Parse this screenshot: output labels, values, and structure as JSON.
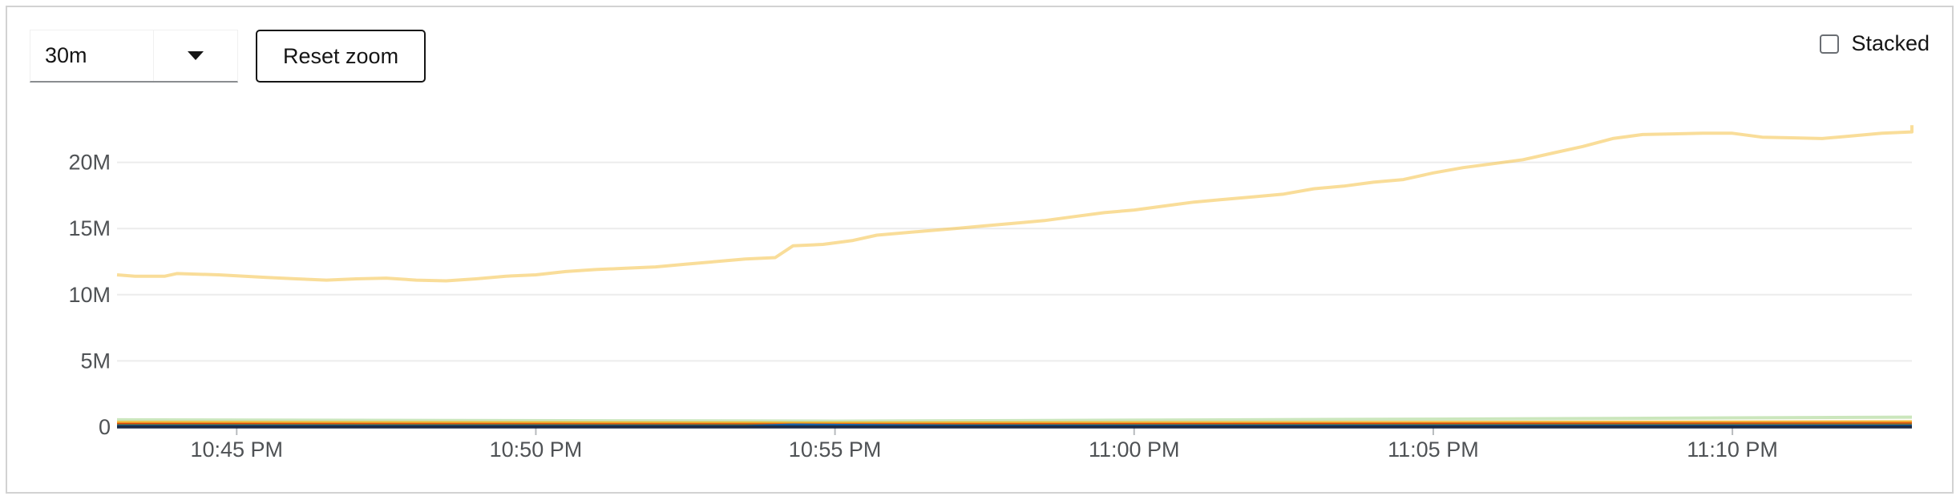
{
  "toolbar": {
    "range_value": "30m",
    "range_toggle_icon": "caret-down-icon",
    "reset_zoom_label": "Reset zoom"
  },
  "stacked": {
    "label": "Stacked",
    "checked": false
  },
  "chart_data": {
    "type": "line",
    "title": "",
    "xlabel": "",
    "ylabel": "",
    "grid": true,
    "y_ticks": [
      {
        "value": 0,
        "label": "0"
      },
      {
        "value": 5000000,
        "label": "5M"
      },
      {
        "value": 10000000,
        "label": "10M"
      },
      {
        "value": 15000000,
        "label": "15M"
      },
      {
        "value": 20000000,
        "label": "20M"
      }
    ],
    "ylim": [
      0,
      25000000
    ],
    "x_range": [
      "22:43:00",
      "22:13:00+1"
    ],
    "xlim_minutes": [
      -2.0,
      28.0
    ],
    "x_ticks": [
      {
        "minute": 0,
        "label": "10:45 PM"
      },
      {
        "minute": 5,
        "label": "10:50 PM"
      },
      {
        "minute": 10,
        "label": "10:55 PM"
      },
      {
        "minute": 15,
        "label": "11:00 PM"
      },
      {
        "minute": 20,
        "label": "11:05 PM"
      },
      {
        "minute": 25,
        "label": "11:10 PM"
      }
    ],
    "series": [
      {
        "color": "#f4c145",
        "opacity": 0.55,
        "points": [
          [
            -2.0,
            11.5
          ],
          [
            -1.7,
            11.4
          ],
          [
            -1.2,
            11.4
          ],
          [
            -1.0,
            11.6
          ],
          [
            -0.3,
            11.5
          ],
          [
            0.5,
            11.3
          ],
          [
            1.0,
            11.2
          ],
          [
            1.5,
            11.1
          ],
          [
            2.0,
            11.2
          ],
          [
            2.5,
            11.25
          ],
          [
            3.0,
            11.1
          ],
          [
            3.5,
            11.05
          ],
          [
            4.0,
            11.2
          ],
          [
            4.5,
            11.4
          ],
          [
            5.0,
            11.5
          ],
          [
            5.5,
            11.75
          ],
          [
            6.0,
            11.9
          ],
          [
            6.5,
            12.0
          ],
          [
            7.0,
            12.1
          ],
          [
            7.5,
            12.3
          ],
          [
            8.0,
            12.5
          ],
          [
            8.5,
            12.7
          ],
          [
            9.0,
            12.8
          ],
          [
            9.3,
            13.7
          ],
          [
            9.8,
            13.8
          ],
          [
            10.3,
            14.1
          ],
          [
            10.7,
            14.5
          ],
          [
            11.2,
            14.7
          ],
          [
            12.0,
            15.0
          ],
          [
            12.5,
            15.2
          ],
          [
            13.0,
            15.4
          ],
          [
            13.5,
            15.6
          ],
          [
            14.0,
            15.9
          ],
          [
            14.5,
            16.2
          ],
          [
            15.0,
            16.4
          ],
          [
            15.5,
            16.7
          ],
          [
            16.0,
            17.0
          ],
          [
            16.5,
            17.2
          ],
          [
            17.0,
            17.4
          ],
          [
            17.5,
            17.6
          ],
          [
            18.0,
            18.0
          ],
          [
            18.5,
            18.2
          ],
          [
            19.0,
            18.5
          ],
          [
            19.5,
            18.7
          ],
          [
            20.0,
            19.2
          ],
          [
            20.5,
            19.6
          ],
          [
            21.0,
            19.9
          ],
          [
            21.5,
            20.2
          ],
          [
            22.0,
            20.7
          ],
          [
            22.5,
            21.2
          ],
          [
            23.0,
            21.8
          ],
          [
            23.5,
            22.1
          ],
          [
            24.0,
            22.15
          ],
          [
            24.5,
            22.2
          ],
          [
            25.0,
            22.2
          ],
          [
            25.5,
            21.9
          ],
          [
            26.0,
            21.85
          ],
          [
            26.5,
            21.8
          ],
          [
            27.0,
            22.0
          ],
          [
            27.5,
            22.2
          ],
          [
            28.0,
            22.3
          ],
          [
            28.5,
            22.4
          ],
          [
            29.0,
            22.5
          ],
          [
            29.5,
            22.6
          ],
          [
            30.0,
            22.8
          ]
        ],
        "points_unit": "millions"
      },
      {
        "color": "#a8d68f",
        "opacity": 0.6,
        "points": [
          [
            -2.0,
            0.55
          ],
          [
            10.0,
            0.45
          ],
          [
            20.0,
            0.6
          ],
          [
            28.0,
            0.75
          ]
        ],
        "points_unit": "millions"
      },
      {
        "color": "#f0ab00",
        "opacity": 0.7,
        "points": [
          [
            -2.0,
            0.35
          ],
          [
            10.0,
            0.3
          ],
          [
            20.0,
            0.35
          ],
          [
            28.0,
            0.4
          ]
        ],
        "points_unit": "millions"
      },
      {
        "color": "#ec7a08",
        "opacity": 0.7,
        "points": [
          [
            -2.0,
            0.25
          ],
          [
            10.0,
            0.2
          ],
          [
            20.0,
            0.25
          ],
          [
            28.0,
            0.3
          ]
        ],
        "points_unit": "millions"
      },
      {
        "color": "#c9190b",
        "opacity": 0.6,
        "points": [
          [
            -2.0,
            0.18
          ],
          [
            10.0,
            0.15
          ],
          [
            20.0,
            0.2
          ],
          [
            28.0,
            0.22
          ]
        ],
        "points_unit": "millions"
      },
      {
        "color": "#3e8635",
        "opacity": 0.6,
        "points": [
          [
            -2.0,
            0.12
          ],
          [
            10.0,
            0.1
          ],
          [
            20.0,
            0.12
          ],
          [
            28.0,
            0.15
          ]
        ],
        "points_unit": "millions"
      },
      {
        "color": "#06c",
        "opacity": 0.8,
        "points": [
          [
            -2.0,
            0.05
          ],
          [
            8.5,
            0.03
          ],
          [
            9.3,
            0.15
          ],
          [
            12.0,
            0.06
          ],
          [
            20.0,
            0.05
          ],
          [
            28.0,
            0.06
          ]
        ],
        "points_unit": "millions"
      },
      {
        "color": "#002f5d",
        "opacity": 0.9,
        "points": [
          [
            -2.0,
            0.02
          ],
          [
            28.0,
            0.02
          ]
        ],
        "points_unit": "millions"
      }
    ]
  }
}
